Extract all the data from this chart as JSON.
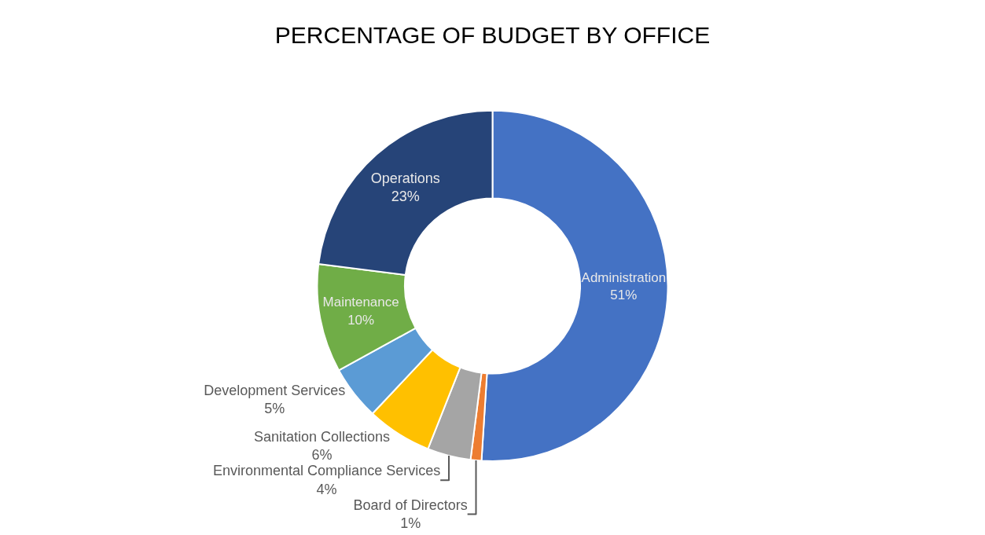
{
  "chart_data": {
    "type": "donut",
    "title": "PERCENTAGE OF BUDGET BY OFFICE",
    "categories": [
      "Administration",
      "Board of Directors",
      "Environmental Compliance Services",
      "Sanitation Collections",
      "Development Services",
      "Maintenance",
      "Operations"
    ],
    "values": [
      51,
      1,
      4,
      6,
      5,
      10,
      23
    ],
    "value_labels": [
      "51%",
      "1%",
      "4%",
      "6%",
      "5%",
      "10%",
      "23%"
    ],
    "colors": [
      "#4472c4",
      "#ed7d31",
      "#a5a5a5",
      "#ffc000",
      "#5b9bd5",
      "#70ad47",
      "#264478"
    ],
    "legend": false
  }
}
